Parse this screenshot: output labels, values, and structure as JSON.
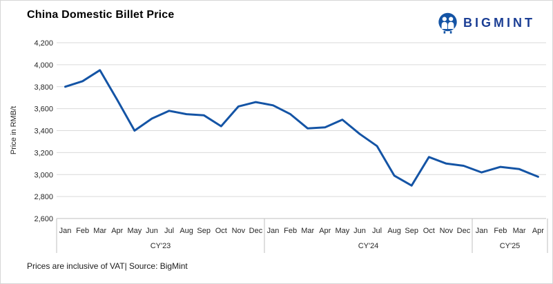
{
  "header": {
    "title": "China Domestic Billet Price"
  },
  "logo": {
    "text": "BIGMINT",
    "icon": "two-people-circle-icon",
    "color": "#1b3e94",
    "icon_color": "#1454a5"
  },
  "footer": {
    "note": "Prices are inclusive of VAT| Source: BigMint"
  },
  "chart_data": {
    "type": "line",
    "title": "China Domestic Billet Price",
    "xlabel": "",
    "ylabel": "Price in RMB/t",
    "ylim": [
      2600,
      4200
    ],
    "yticks": [
      2600,
      2800,
      3000,
      3200,
      3400,
      3600,
      3800,
      4000,
      4200
    ],
    "ytick_labels": [
      "2,600",
      "2,800",
      "3,000",
      "3,200",
      "3,400",
      "3,600",
      "3,800",
      "4,000",
      "4,200"
    ],
    "grid": "horizontal",
    "legend": "none",
    "line_color": "#1454a5",
    "gridline_color": "#d9d9d9",
    "axis_color": "#bfbfbf",
    "groups": [
      {
        "year": "CY'23",
        "months": [
          "Jan",
          "Feb",
          "Mar",
          "Apr",
          "May",
          "Jun",
          "Jul",
          "Aug",
          "Sep",
          "Oct",
          "Nov",
          "Dec"
        ],
        "values": [
          3800,
          3850,
          3950,
          3680,
          3400,
          3510,
          3580,
          3550,
          3540,
          3440,
          3620,
          3660
        ]
      },
      {
        "year": "CY'24",
        "months": [
          "Jan",
          "Feb",
          "Mar",
          "Apr",
          "May",
          "Jun",
          "Jul",
          "Aug",
          "Sep",
          "Oct",
          "Nov",
          "Dec"
        ],
        "values": [
          3630,
          3550,
          3420,
          3430,
          3500,
          3370,
          3260,
          2990,
          2900,
          3160,
          3100,
          3080
        ]
      },
      {
        "year": "CY'25",
        "months": [
          "Jan",
          "Feb",
          "Mar",
          "Apr"
        ],
        "values": [
          3020,
          3070,
          3050,
          2980
        ]
      }
    ]
  }
}
